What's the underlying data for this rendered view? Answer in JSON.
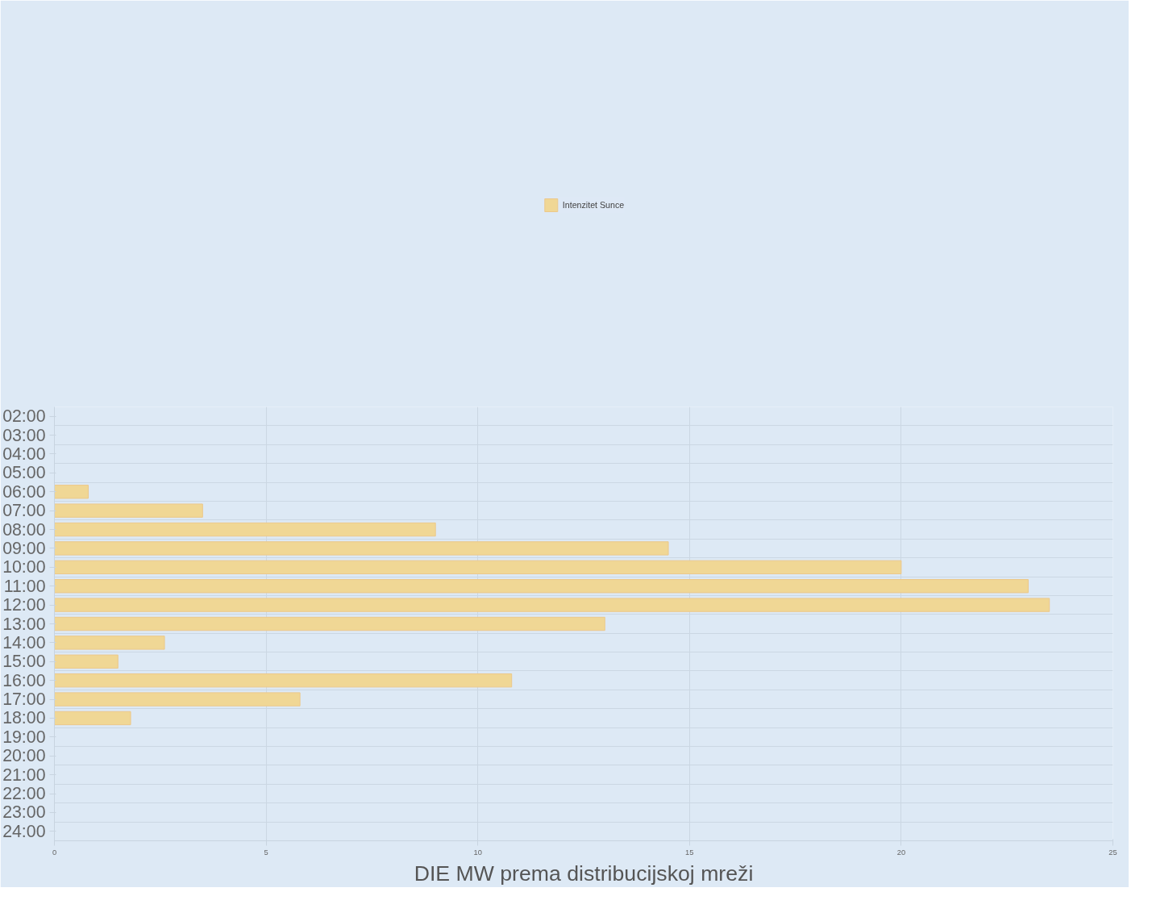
{
  "chart_data": {
    "type": "bar",
    "orientation": "horizontal",
    "xlabel": "DIE MW prema distribucijskoj mreži",
    "categories": [
      "02:00",
      "03:00",
      "04:00",
      "05:00",
      "06:00",
      "07:00",
      "08:00",
      "09:00",
      "10:00",
      "11:00",
      "12:00",
      "13:00",
      "14:00",
      "15:00",
      "16:00",
      "17:00",
      "18:00",
      "19:00",
      "20:00",
      "21:00",
      "22:00",
      "23:00",
      "24:00"
    ],
    "series": [
      {
        "name": "Intenzitet Sunce",
        "color": "#f0d795",
        "values": [
          null,
          null,
          null,
          null,
          0.8,
          3.5,
          9.0,
          14.5,
          20.0,
          23.0,
          23.5,
          13.0,
          2.6,
          1.5,
          10.8,
          5.8,
          1.8,
          null,
          null,
          null,
          null,
          null,
          null
        ]
      }
    ],
    "xlim": [
      0,
      25
    ],
    "xticks": [
      0,
      5,
      10,
      15,
      20,
      25
    ],
    "grid": true,
    "legend": "top"
  }
}
